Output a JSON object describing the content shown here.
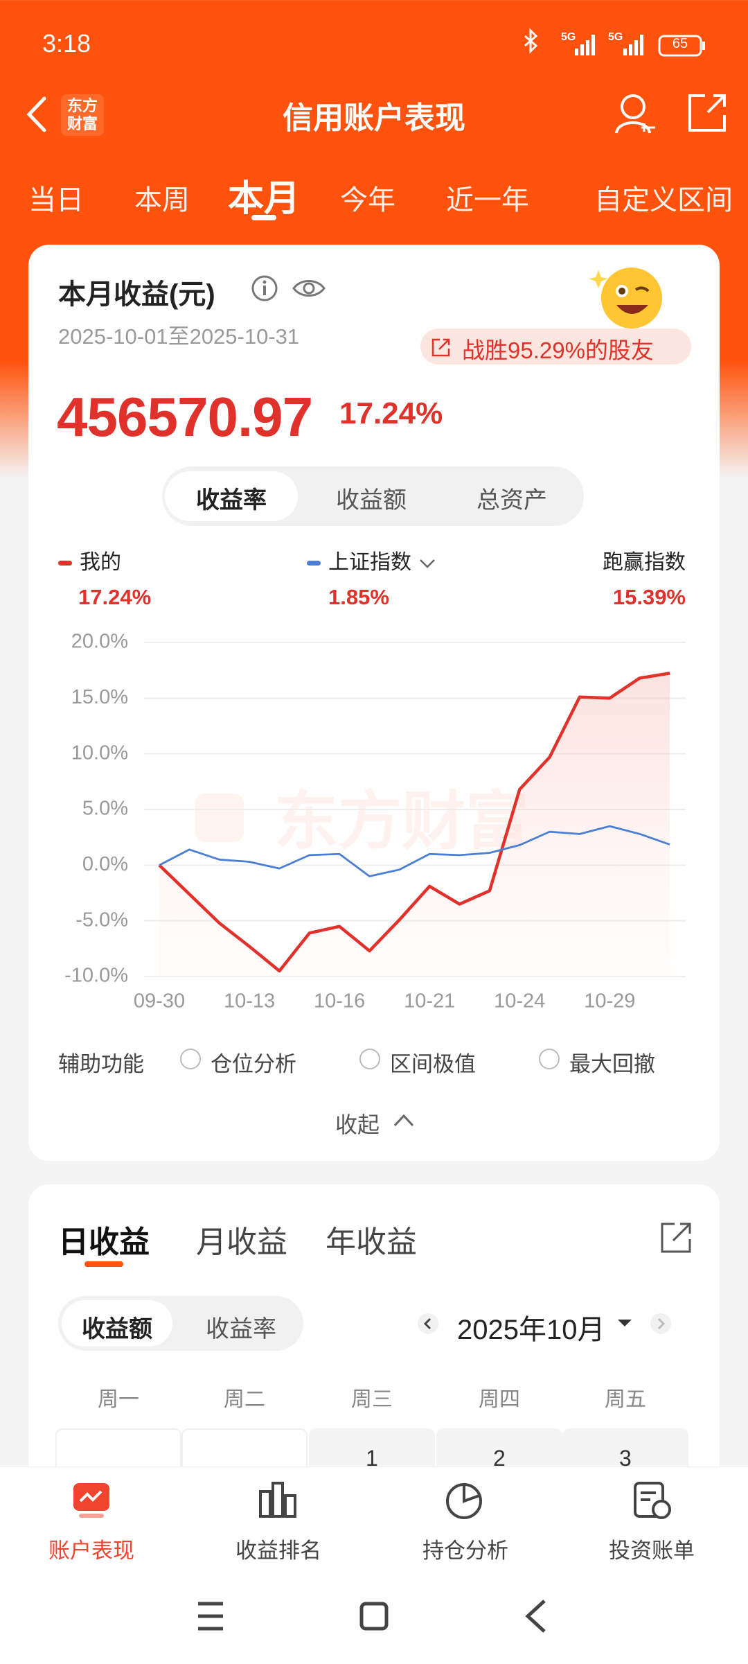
{
  "status_bar": {
    "time": "3:18",
    "battery": "65"
  },
  "header": {
    "logo": [
      "东方",
      "财富"
    ],
    "title": "信用账户表现"
  },
  "period_tabs": {
    "items": [
      "当日",
      "本周",
      "本月",
      "今年",
      "近一年",
      "自定义区间"
    ],
    "selected": 2
  },
  "summary": {
    "title": "本月收益(元)",
    "date_range": "2025-10-01至2025-10-31",
    "badge": "战胜95.29%的股友",
    "amount": "456570.97",
    "return": "17.24%"
  },
  "metric_tabs": {
    "items": [
      "收益率",
      "收益额",
      "总资产"
    ],
    "selected": 0
  },
  "chart_data": {
    "type": "line",
    "watermark": "东方财富",
    "categories": [
      "09-30",
      null,
      null,
      "10-13",
      null,
      null,
      "10-16",
      null,
      null,
      "10-21",
      null,
      null,
      "10-24",
      null,
      null,
      "10-29",
      null,
      null
    ],
    "series": [
      {
        "name": "我的",
        "color": "#e0312b",
        "summary": "17.24%",
        "area": true,
        "values": [
          0,
          -2.6,
          -5.2,
          -7.3,
          -9.5,
          -6.1,
          -5.5,
          -7.7,
          -4.9,
          -1.9,
          -3.5,
          -2.3,
          6.8,
          9.7,
          15.1,
          15.0,
          16.8,
          17.24
        ]
      },
      {
        "name": "上证指数",
        "color": "#4a7fd4",
        "summary": "1.85%",
        "area": false,
        "values": [
          0,
          1.4,
          0.5,
          0.3,
          -0.3,
          0.9,
          1.0,
          -1.0,
          -0.4,
          1.0,
          0.9,
          1.1,
          1.8,
          3.0,
          2.8,
          3.5,
          2.8,
          1.85
        ]
      }
    ],
    "excess": {
      "name": "跑赢指数",
      "value": "15.39%"
    },
    "ylim": [
      -10,
      20
    ],
    "yticks": [
      {
        "value": -10,
        "label": "-10.0%"
      },
      {
        "value": -5,
        "label": "-5.0%"
      },
      {
        "value": 0,
        "label": "0.0%"
      },
      {
        "value": 5,
        "label": "5.0%"
      },
      {
        "value": 10,
        "label": "10.0%"
      },
      {
        "value": 15,
        "label": "15.0%"
      },
      {
        "value": 20,
        "label": "20.0%"
      }
    ],
    "grid": true
  },
  "tools": {
    "label": "辅助功能",
    "options": [
      "仓位分析",
      "区间极值",
      "最大回撤"
    ]
  },
  "collapse": "收起",
  "income_tabs": {
    "items": [
      "日收益",
      "月收益",
      "年收益"
    ],
    "selected": 0
  },
  "income_metric": {
    "items": [
      "收益额",
      "收益率"
    ],
    "selected": 0
  },
  "month": "2025年10月",
  "weekdays": [
    "周一",
    "周二",
    "周三",
    "周四",
    "周五"
  ],
  "calendar_days": [
    "1",
    "2",
    "3"
  ],
  "bottom_nav": {
    "items": [
      "账户表现",
      "收益排名",
      "持仓分析",
      "投资账单"
    ],
    "selected": 0
  }
}
